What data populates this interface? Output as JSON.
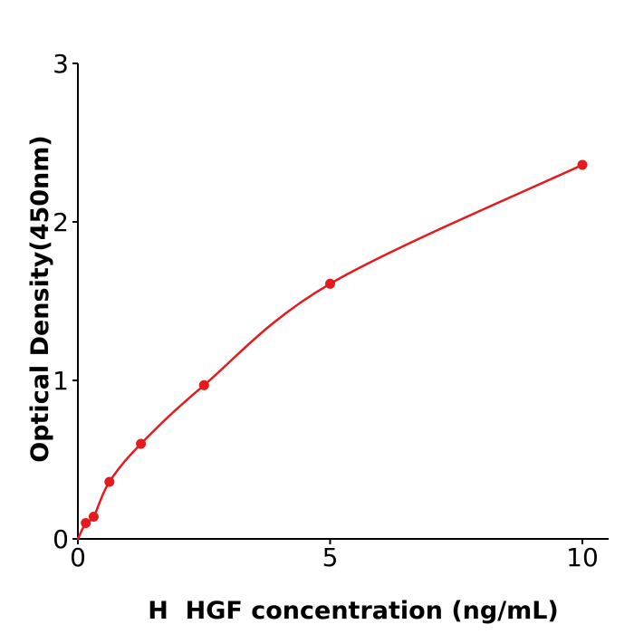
{
  "chart_data": {
    "type": "scatter-line",
    "title": "",
    "xlabel": "H  HGF concentration (ng/mL)",
    "ylabel": "Optical Density(450nm)",
    "x": [
      0.156,
      0.3125,
      0.625,
      1.25,
      2.5,
      5,
      10
    ],
    "y": [
      0.1,
      0.14,
      0.36,
      0.6,
      0.97,
      1.61,
      2.36
    ],
    "curve_start": {
      "x": 0,
      "y": 0
    },
    "x_ticks": [
      0,
      5,
      10
    ],
    "x_tick_labels": [
      "0",
      "5",
      "10"
    ],
    "y_ticks": [
      0,
      1,
      2,
      3
    ],
    "y_tick_labels": [
      "0",
      "1",
      "2",
      "3"
    ],
    "xlim": [
      0,
      10.52
    ],
    "ylim": [
      0,
      3
    ],
    "grid": false,
    "legend": "none",
    "colors": {
      "line": "#e41a1c",
      "marker": "#e41a1c",
      "axis": "#000000",
      "text": "#000000",
      "background": "#ffffff"
    }
  }
}
